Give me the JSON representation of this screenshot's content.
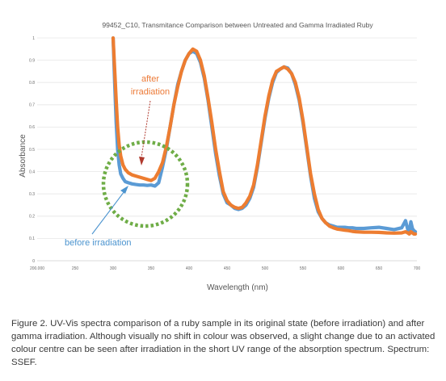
{
  "chart_data": {
    "type": "line",
    "title": "99452_C10, Transmitance Comparison between Untreated and Gamma Irradiated Ruby",
    "xlabel": "Wavelength (nm)",
    "ylabel": "Absorbance",
    "xlim": [
      200,
      700
    ],
    "ylim": [
      0,
      1
    ],
    "x_tick_labels": [
      "200.000",
      "250",
      "300",
      "350",
      "400",
      "450",
      "500",
      "550",
      "600",
      "650",
      "700"
    ],
    "y_tick_labels": [
      "0",
      "0.1",
      "0.2",
      "0.3",
      "0.4",
      "0.5",
      "0.6",
      "0.7",
      "0.8",
      "0.9",
      "1"
    ],
    "grid": "horizontal",
    "series": [
      {
        "key": "untreated",
        "color": "#5b9bd5",
        "x": [
          300,
          302,
          304,
          306,
          308,
          310,
          313,
          316,
          320,
          325,
          330,
          335,
          340,
          345,
          350,
          355,
          360,
          365,
          370,
          375,
          380,
          385,
          390,
          395,
          400,
          405,
          410,
          415,
          420,
          425,
          430,
          435,
          440,
          445,
          450,
          455,
          460,
          465,
          470,
          475,
          480,
          485,
          490,
          495,
          500,
          505,
          510,
          515,
          520,
          525,
          530,
          535,
          540,
          545,
          550,
          555,
          560,
          565,
          570,
          575,
          580,
          585,
          590,
          595,
          600,
          605,
          610,
          615,
          620,
          630,
          640,
          650,
          660,
          670,
          680,
          685,
          688,
          690,
          692,
          694,
          696,
          698
        ],
        "y": [
          1.0,
          0.8,
          0.62,
          0.5,
          0.43,
          0.39,
          0.37,
          0.355,
          0.35,
          0.345,
          0.342,
          0.34,
          0.34,
          0.338,
          0.34,
          0.335,
          0.35,
          0.42,
          0.5,
          0.6,
          0.7,
          0.79,
          0.85,
          0.9,
          0.93,
          0.94,
          0.93,
          0.89,
          0.82,
          0.72,
          0.6,
          0.48,
          0.38,
          0.3,
          0.26,
          0.25,
          0.235,
          0.23,
          0.235,
          0.25,
          0.28,
          0.33,
          0.42,
          0.53,
          0.64,
          0.73,
          0.8,
          0.845,
          0.86,
          0.87,
          0.865,
          0.84,
          0.79,
          0.72,
          0.62,
          0.5,
          0.38,
          0.28,
          0.22,
          0.19,
          0.17,
          0.16,
          0.155,
          0.15,
          0.15,
          0.15,
          0.148,
          0.148,
          0.145,
          0.145,
          0.148,
          0.15,
          0.145,
          0.14,
          0.148,
          0.18,
          0.14,
          0.13,
          0.175,
          0.145,
          0.135,
          0.13
        ]
      },
      {
        "key": "irradiated",
        "color": "#ed7d31",
        "x": [
          300,
          302,
          304,
          306,
          308,
          310,
          313,
          316,
          320,
          325,
          330,
          335,
          340,
          345,
          350,
          355,
          360,
          365,
          370,
          375,
          380,
          385,
          390,
          395,
          400,
          405,
          410,
          415,
          420,
          425,
          430,
          435,
          440,
          445,
          450,
          455,
          460,
          465,
          470,
          475,
          480,
          485,
          490,
          495,
          500,
          505,
          510,
          515,
          520,
          525,
          530,
          535,
          540,
          545,
          550,
          555,
          560,
          565,
          570,
          575,
          580,
          585,
          590,
          595,
          600,
          605,
          610,
          615,
          620,
          630,
          640,
          650,
          660,
          670,
          680,
          685,
          688,
          690,
          692,
          694,
          696,
          698
        ],
        "y": [
          1.0,
          0.86,
          0.72,
          0.6,
          0.52,
          0.47,
          0.43,
          0.41,
          0.395,
          0.385,
          0.38,
          0.375,
          0.37,
          0.365,
          0.36,
          0.37,
          0.4,
          0.44,
          0.51,
          0.6,
          0.7,
          0.78,
          0.85,
          0.9,
          0.93,
          0.95,
          0.94,
          0.9,
          0.83,
          0.73,
          0.62,
          0.5,
          0.4,
          0.31,
          0.27,
          0.25,
          0.24,
          0.235,
          0.24,
          0.26,
          0.29,
          0.34,
          0.43,
          0.54,
          0.65,
          0.74,
          0.81,
          0.85,
          0.86,
          0.87,
          0.86,
          0.84,
          0.8,
          0.73,
          0.63,
          0.51,
          0.39,
          0.3,
          0.23,
          0.19,
          0.17,
          0.155,
          0.148,
          0.142,
          0.14,
          0.137,
          0.135,
          0.132,
          0.13,
          0.128,
          0.128,
          0.127,
          0.125,
          0.124,
          0.125,
          0.13,
          0.125,
          0.12,
          0.13,
          0.125,
          0.12,
          0.12
        ]
      }
    ],
    "annotations": {
      "after": [
        "after",
        "irradiation"
      ],
      "before": "before irradiation"
    },
    "annotation_colors": {
      "after": "#ec7a37",
      "before": "#4c94cf",
      "circle": "#6fad47"
    }
  },
  "caption": "Figure 2. UV-Vis spectra comparison of a ruby sample in its original state (before irradiation) and after gamma irradiation. Although visually no shift in colour was observed, a slight change due to an activated colour centre can be seen after irradiation in the short UV range of the absorption spectrum. Spectrum: SSEF."
}
